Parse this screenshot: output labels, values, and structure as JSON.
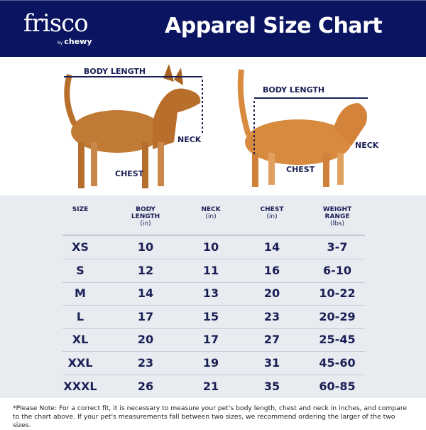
{
  "header": {
    "brand": "frisco",
    "by": "by",
    "sub_brand": "chewy",
    "title": "Apparel Size Chart",
    "colors": {
      "navy": "#0b1460",
      "background": "#e8ebf0"
    }
  },
  "photos": {
    "dog": {
      "body_length": "BODY LENGTH",
      "neck": "NECK",
      "chest": "CHEST"
    },
    "cat": {
      "body_length": "BODY LENGTH",
      "neck": "NECK",
      "chest": "CHEST"
    }
  },
  "table": {
    "headers": [
      {
        "label": "SIZE",
        "unit": ""
      },
      {
        "label": "BODY LENGTH",
        "unit": "(in)"
      },
      {
        "label": "NECK",
        "unit": "(in)"
      },
      {
        "label": "CHEST",
        "unit": "(in)"
      },
      {
        "label": "WEIGHT RANGE",
        "unit": "(lbs)"
      }
    ],
    "rows": [
      [
        "XS",
        "10",
        "10",
        "14",
        "3-7"
      ],
      [
        "S",
        "12",
        "11",
        "16",
        "6-10"
      ],
      [
        "M",
        "14",
        "13",
        "20",
        "10-22"
      ],
      [
        "L",
        "17",
        "15",
        "23",
        "20-29"
      ],
      [
        "XL",
        "20",
        "17",
        "27",
        "25-45"
      ],
      [
        "XXL",
        "23",
        "19",
        "31",
        "45-60"
      ],
      [
        "XXXL",
        "26",
        "21",
        "35",
        "60-85"
      ]
    ]
  },
  "footer": {
    "note": "*Please Note: For a correct fit, it is necessary to measure your pet's body length, chest and neck in inches, and compare to the chart above. If your pet's measurements fall between two sizes, we recommend ordering the larger of the two sizes."
  }
}
